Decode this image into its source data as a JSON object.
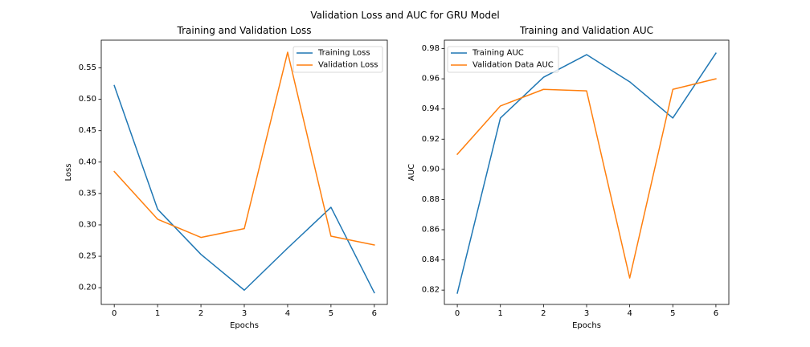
{
  "figure": {
    "suptitle": "Validation Loss and AUC for GRU Model"
  },
  "colors": {
    "series1": "#1f77b4",
    "series2": "#ff7f0e"
  },
  "chart_data": [
    {
      "type": "line",
      "title": "Training and Validation Loss",
      "xlabel": "Epochs",
      "ylabel": "Loss",
      "x": [
        0,
        1,
        2,
        3,
        4,
        5,
        6
      ],
      "xticks": [
        0,
        1,
        2,
        3,
        4,
        5,
        6
      ],
      "xlim": [
        -0.3,
        6.3
      ],
      "yticks": [
        0.2,
        0.25,
        0.3,
        0.35,
        0.4,
        0.45,
        0.5,
        0.55
      ],
      "yticklabels": [
        "0.20",
        "0.25",
        "0.30",
        "0.35",
        "0.40",
        "0.45",
        "0.50",
        "0.55"
      ],
      "ylim": [
        0.1733,
        0.5942
      ],
      "grid": false,
      "legend_loc": "top-right",
      "series": [
        {
          "name": "Training Loss",
          "values": [
            0.522,
            0.325,
            0.253,
            0.196,
            0.263,
            0.328,
            0.192
          ]
        },
        {
          "name": "Validation Loss",
          "values": [
            0.385,
            0.309,
            0.28,
            0.294,
            0.575,
            0.282,
            0.268
          ]
        }
      ]
    },
    {
      "type": "line",
      "title": "Training and Validation AUC",
      "xlabel": "Epochs",
      "ylabel": "AUC",
      "x": [
        0,
        1,
        2,
        3,
        4,
        5,
        6
      ],
      "xticks": [
        0,
        1,
        2,
        3,
        4,
        5,
        6
      ],
      "xlim": [
        -0.3,
        6.3
      ],
      "yticks": [
        0.82,
        0.84,
        0.86,
        0.88,
        0.9,
        0.92,
        0.94,
        0.96,
        0.98
      ],
      "yticklabels": [
        "0.82",
        "0.84",
        "0.86",
        "0.88",
        "0.90",
        "0.92",
        "0.94",
        "0.96",
        "0.98"
      ],
      "ylim": [
        0.8105,
        0.9856
      ],
      "grid": false,
      "legend_loc": "top-left",
      "series": [
        {
          "name": "Training AUC",
          "values": [
            0.818,
            0.934,
            0.961,
            0.976,
            0.958,
            0.934,
            0.977
          ]
        },
        {
          "name": "Validation Data AUC",
          "values": [
            0.91,
            0.942,
            0.953,
            0.952,
            0.828,
            0.953,
            0.96
          ]
        }
      ]
    }
  ]
}
